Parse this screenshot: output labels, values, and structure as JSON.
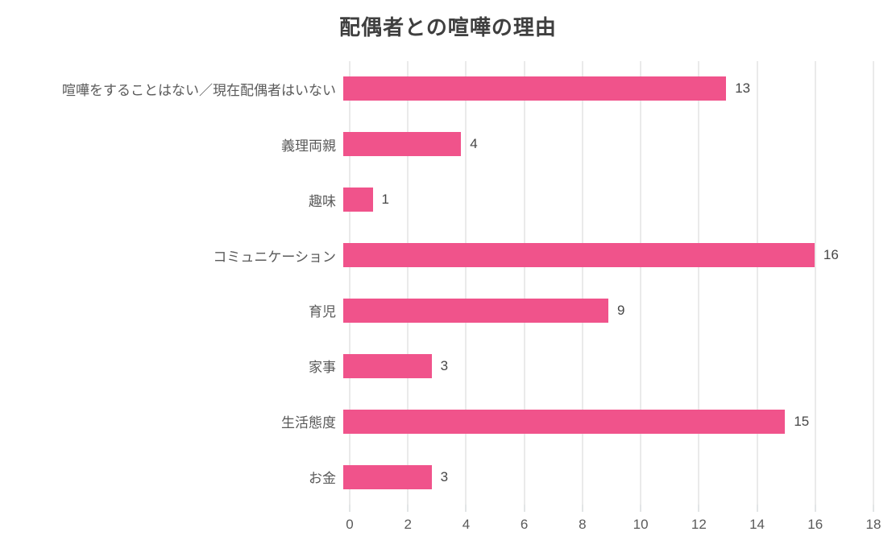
{
  "chart_data": {
    "type": "bar",
    "orientation": "horizontal",
    "title": "配偶者との喧嘩の理由",
    "categories": [
      "喧嘩をすることはない／現在配偶者はいない",
      "義理両親",
      "趣味",
      "コミュニケーション",
      "育児",
      "家事",
      "生活態度",
      "お金"
    ],
    "values": [
      13,
      4,
      1,
      16,
      9,
      3,
      15,
      3
    ],
    "value_labels": [
      "13",
      "4",
      "1",
      "16",
      "9",
      "3",
      "15",
      "3"
    ],
    "xlabel": "",
    "ylabel": "",
    "xlim": [
      0,
      18
    ],
    "xticks": [
      0,
      2,
      4,
      6,
      8,
      10,
      12,
      14,
      16,
      18
    ],
    "grid": "vertical",
    "legend": "none",
    "colors": {
      "bar": "#f0538b",
      "gridline": "#d6d6d6",
      "title_text": "#3f3f3f",
      "label_text": "#5a5a5a",
      "value_text": "#464646",
      "background": "#ffffff"
    }
  }
}
